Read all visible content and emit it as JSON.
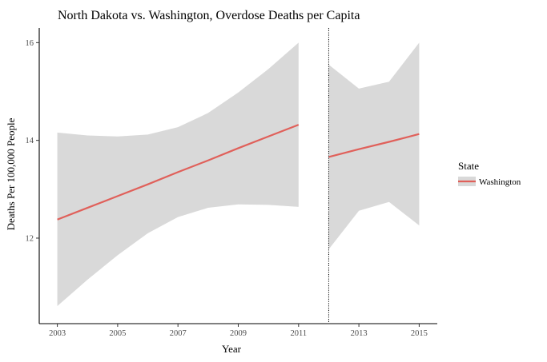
{
  "chart_data": {
    "type": "line",
    "title": "North Dakota vs. Washington, Overdose Deaths per Capita",
    "xlabel": "Year",
    "ylabel": "Deaths Per 100,000 People",
    "x_ticks": [
      "2003",
      "2005",
      "2007",
      "2009",
      "2011",
      "2013",
      "2015"
    ],
    "y_ticks": [
      "12",
      "14",
      "16"
    ],
    "xlim": [
      2002.4,
      2015.6
    ],
    "ylim": [
      10.25,
      16.3
    ],
    "vline_x": 2012,
    "vline_style": "dotted",
    "legend_title": "State",
    "legend_position": "right",
    "series": [
      {
        "name": "Washington",
        "color": "#e0605a",
        "band_color": "#d9d9d9",
        "segments": [
          {
            "x": [
              2003,
              2004,
              2005,
              2006,
              2007,
              2008,
              2009,
              2010,
              2011
            ],
            "y": [
              12.38,
              12.62,
              12.86,
              13.1,
              13.35,
              13.59,
              13.84,
              14.08,
              14.32
            ],
            "upper": [
              14.16,
              14.1,
              14.08,
              14.12,
              14.27,
              14.56,
              14.98,
              15.46,
              16.0
            ],
            "lower": [
              10.61,
              11.15,
              11.65,
              12.1,
              12.43,
              12.62,
              12.69,
              12.68,
              12.64
            ]
          },
          {
            "x": [
              2012,
              2013,
              2014,
              2015
            ],
            "y": [
              13.66,
              13.82,
              13.97,
              14.13
            ],
            "upper": [
              15.55,
              15.06,
              15.2,
              16.0
            ],
            "lower": [
              11.77,
              12.56,
              12.74,
              12.26
            ]
          }
        ]
      }
    ]
  }
}
